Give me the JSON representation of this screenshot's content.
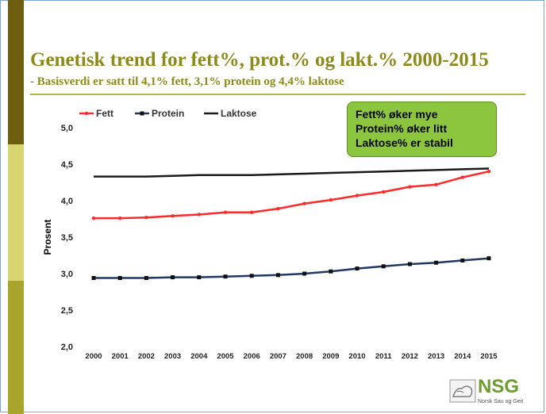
{
  "slide": {
    "title": "Genetisk trend for fett%, prot.% og lakt.% 2000-2015",
    "subtitle": "- Basisverdi er satt til 4,1% fett, 3,1% protein og 4,4% laktose"
  },
  "callout": {
    "lines": [
      "Fett% øker mye",
      "Protein% øker litt",
      "Laktose% er stabil"
    ],
    "color": "#8cc63f"
  },
  "logo": {
    "text": "NSG",
    "subtext": "Norsk Sau og Geit"
  },
  "chart_data": {
    "type": "line",
    "title": "",
    "xlabel": "",
    "ylabel": "Prosent",
    "categories": [
      "2000",
      "2001",
      "2002",
      "2003",
      "2004",
      "2005",
      "2006",
      "2007",
      "2008",
      "2009",
      "2010",
      "2011",
      "2012",
      "2013",
      "2014",
      "2015"
    ],
    "ylim": [
      2.0,
      5.0
    ],
    "yticks": [
      2.0,
      2.5,
      3.0,
      3.5,
      4.0,
      4.5,
      5.0
    ],
    "ytick_labels": [
      "2,0",
      "2,5",
      "3,0",
      "3,5",
      "4,0",
      "4,5",
      "5,0"
    ],
    "grid": false,
    "legend": "top-left",
    "series": [
      {
        "name": "Fett",
        "color": "#ff2a2a",
        "marker": "dot",
        "values": [
          3.76,
          3.76,
          3.77,
          3.79,
          3.81,
          3.84,
          3.84,
          3.89,
          3.96,
          4.01,
          4.07,
          4.12,
          4.19,
          4.22,
          4.32,
          4.4
        ]
      },
      {
        "name": "Protein",
        "color": "#1f3864",
        "marker": "square",
        "values": [
          2.94,
          2.94,
          2.94,
          2.95,
          2.95,
          2.96,
          2.97,
          2.98,
          3.0,
          3.03,
          3.07,
          3.1,
          3.13,
          3.15,
          3.18,
          3.21
        ]
      },
      {
        "name": "Laktose",
        "color": "#1a1a1a",
        "marker": "none",
        "values": [
          4.33,
          4.33,
          4.33,
          4.34,
          4.35,
          4.35,
          4.35,
          4.36,
          4.37,
          4.38,
          4.39,
          4.4,
          4.41,
          4.42,
          4.43,
          4.44
        ]
      }
    ]
  }
}
